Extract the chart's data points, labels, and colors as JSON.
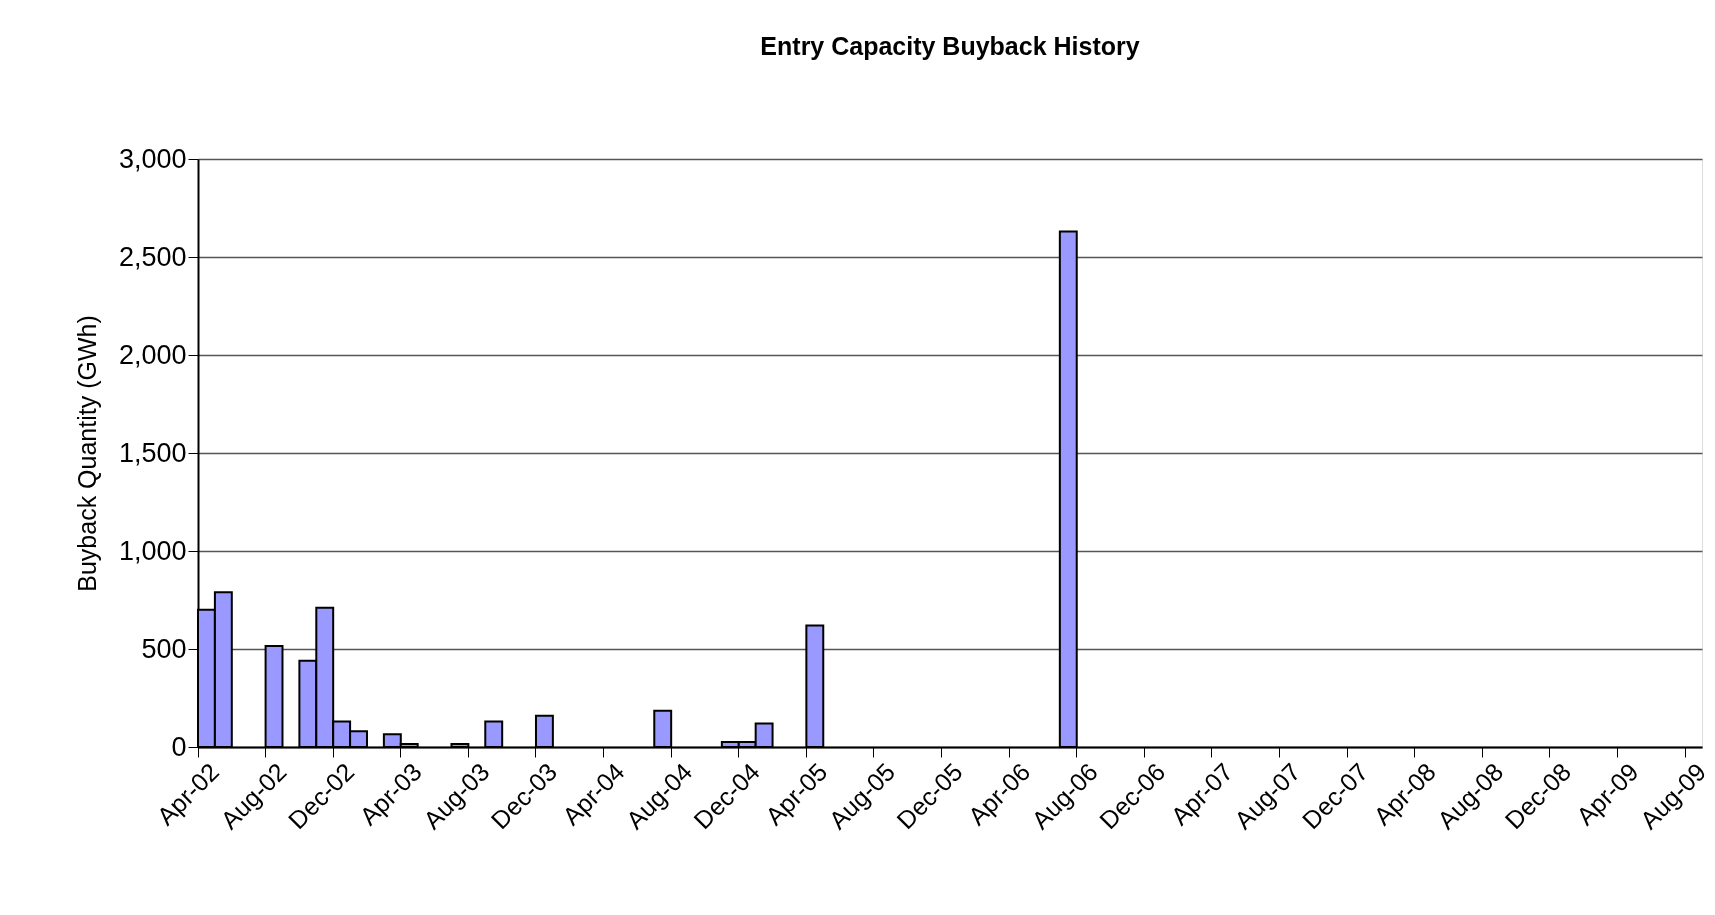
{
  "chart_data": {
    "type": "bar",
    "title": "Entry Capacity Buyback History",
    "ylabel": "Buyback Quantity (GWh)",
    "categories": [
      "Apr-02",
      null,
      null,
      null,
      "Aug-02",
      null,
      null,
      null,
      "Dec-02",
      null,
      null,
      null,
      "Apr-03",
      null,
      null,
      null,
      "Aug-03",
      null,
      null,
      null,
      "Dec-03",
      null,
      null,
      null,
      "Apr-04",
      null,
      null,
      null,
      "Aug-04",
      null,
      null,
      null,
      "Dec-04",
      null,
      null,
      null,
      "Apr-05",
      null,
      null,
      null,
      "Aug-05",
      null,
      null,
      null,
      "Dec-05",
      null,
      null,
      null,
      "Apr-06",
      null,
      null,
      null,
      "Aug-06",
      null,
      null,
      null,
      "Dec-06",
      null,
      null,
      null,
      "Apr-07",
      null,
      null,
      null,
      "Aug-07",
      null,
      null,
      null,
      "Dec-07",
      null,
      null,
      null,
      "Apr-08",
      null,
      null,
      null,
      "Aug-08",
      null,
      null,
      null,
      "Dec-08",
      null,
      null,
      null,
      "Apr-09",
      null,
      null,
      null,
      "Aug-09"
    ],
    "values": [
      700,
      790,
      null,
      null,
      515,
      null,
      440,
      710,
      130,
      80,
      null,
      65,
      15,
      null,
      null,
      15,
      null,
      130,
      null,
      null,
      160,
      null,
      null,
      null,
      null,
      null,
      null,
      185,
      null,
      null,
      null,
      25,
      25,
      120,
      null,
      null,
      620,
      null,
      null,
      null,
      null,
      null,
      null,
      null,
      null,
      null,
      null,
      null,
      null,
      null,
      null,
      2630,
      null,
      null,
      null,
      null,
      null,
      null,
      null,
      null,
      null,
      null,
      null,
      null,
      null,
      null,
      null,
      null,
      null,
      null,
      null,
      null,
      null,
      null,
      null,
      null,
      null,
      null,
      null,
      null,
      null,
      null,
      null,
      null,
      null,
      null,
      null,
      null,
      null
    ],
    "color": "#9999ff",
    "ylim": [
      0,
      3000
    ],
    "yticks": [
      0,
      500,
      {
        "value": 1000,
        "label": "1,000"
      },
      {
        "value": 1500,
        "label": "1,500"
      },
      {
        "value": 2000,
        "label": "2,000"
      },
      {
        "value": 2500,
        "label": "2,500"
      },
      {
        "value": 3000,
        "label": "3,000"
      }
    ],
    "grid": "y"
  }
}
